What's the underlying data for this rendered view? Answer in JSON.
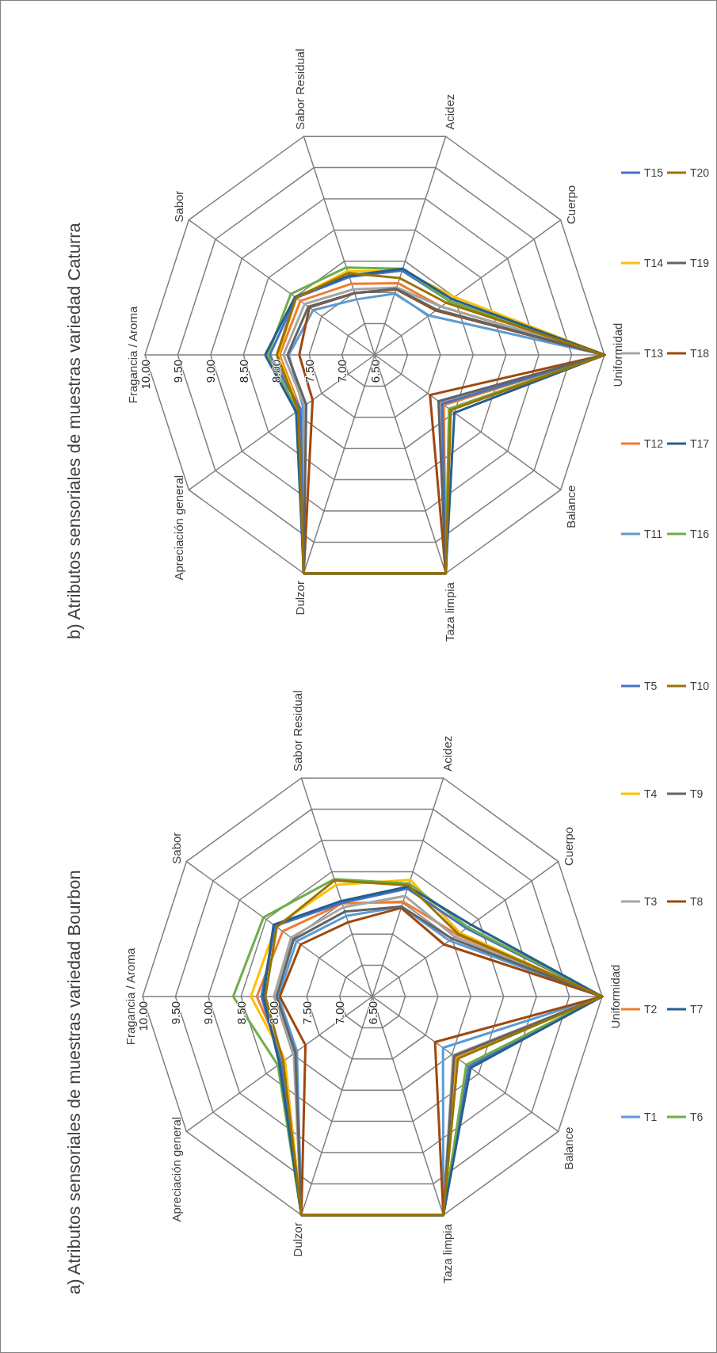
{
  "chart_data": [
    {
      "type": "radar",
      "title": "a) Atributos sensoriales de muestras variedad Bourbon",
      "categories": [
        "Fragancia / Aroma",
        "Sabor",
        "Sabor Residual",
        "Acidez",
        "Cuerpo",
        "Uniformidad",
        "Balance",
        "Taza limpia",
        "Dulzor",
        "Apreciación general"
      ],
      "ylim": [
        6.5,
        10
      ],
      "yticks": [
        {
          "value": 6.5,
          "label": "6.50"
        },
        {
          "value": 7,
          "label": "7.00"
        },
        {
          "value": 7.5,
          "label": "7.50"
        },
        {
          "value": 8,
          "label": "8.00"
        },
        {
          "value": 8.5,
          "label": "8.50"
        },
        {
          "value": 9,
          "label": "9.00"
        },
        {
          "value": 9.5,
          "label": "9.50"
        },
        {
          "value": 10,
          "label": "10.00"
        }
      ],
      "grid": true,
      "legend": "right",
      "marker": "none",
      "line_style": "solid",
      "series": [
        {
          "name": "T1",
          "color": "#5b9bd5",
          "values": [
            7.93,
            7.93,
            7.79,
            7.94,
            7.95,
            10,
            7.83,
            10,
            10,
            7.92
          ]
        },
        {
          "name": "T2",
          "color": "#ed7d31",
          "values": [
            8.26,
            8.19,
            7.99,
            8.02,
            8.1,
            10,
            8.08,
            10,
            10,
            8.15
          ]
        },
        {
          "name": "T3",
          "color": "#a5a5a5",
          "values": [
            8.0,
            8.03,
            7.93,
            8.11,
            8.05,
            10,
            8.02,
            10,
            10,
            7.98
          ]
        },
        {
          "name": "T4",
          "color": "#ffc000",
          "values": [
            8.35,
            8.32,
            8.29,
            8.37,
            8.15,
            10,
            8.1,
            10,
            10,
            8.15
          ]
        },
        {
          "name": "T5",
          "color": "#4472c4",
          "values": [
            8.19,
            8.33,
            8.0,
            8.23,
            8.27,
            10,
            8.31,
            10,
            10,
            8.22
          ]
        },
        {
          "name": "T6",
          "color": "#70ad47",
          "values": [
            8.62,
            8.55,
            8.38,
            8.31,
            8.3,
            10,
            8.27,
            10,
            10,
            8.28
          ]
        },
        {
          "name": "T7",
          "color": "#255e91",
          "values": [
            8.16,
            8.36,
            8.03,
            8.26,
            8.36,
            10,
            8.35,
            10,
            10,
            8.25
          ]
        },
        {
          "name": "T8",
          "color": "#9e480e",
          "values": [
            7.91,
            7.85,
            7.69,
            7.92,
            7.85,
            10,
            7.68,
            10,
            10,
            7.76
          ]
        },
        {
          "name": "T9",
          "color": "#636363",
          "values": [
            7.96,
            7.98,
            7.86,
            7.94,
            8.0,
            10,
            8.04,
            10,
            10,
            7.95
          ]
        },
        {
          "name": "T10",
          "color": "#997300",
          "values": [
            8.13,
            8.3,
            8.36,
            8.28,
            8.12,
            10,
            8.11,
            10,
            10,
            8.18
          ]
        }
      ]
    },
    {
      "type": "radar",
      "title": "b) Atributos sensoriales de muestras variedad Caturra",
      "categories": [
        "Fragancia / Aroma",
        "Sabor",
        "Sabor Residual",
        "Acidez",
        "Cuerpo",
        "Uniformidad",
        "Balance",
        "Taza limpia",
        "Dulzor",
        "Apreciación general"
      ],
      "ylim": [
        6.5,
        10
      ],
      "yticks": [
        {
          "value": 6.5,
          "label": "6.50"
        },
        {
          "value": 7,
          "label": "7.00"
        },
        {
          "value": 7.5,
          "label": "7.50"
        },
        {
          "value": 8,
          "label": "8.00"
        },
        {
          "value": 8.5,
          "label": "8.50"
        },
        {
          "value": 9,
          "label": "9.00"
        },
        {
          "value": 9.5,
          "label": "9.50"
        },
        {
          "value": 10,
          "label": "10.00"
        }
      ],
      "grid": true,
      "legend": "right",
      "marker": "none",
      "line_style": "solid",
      "series": [
        {
          "name": "T11",
          "color": "#5b9bd5",
          "values": [
            7.81,
            7.66,
            7.39,
            7.48,
            7.52,
            10,
            7.75,
            10,
            10,
            7.85
          ]
        },
        {
          "name": "T12",
          "color": "#ed7d31",
          "values": [
            7.95,
            7.9,
            7.64,
            7.65,
            7.75,
            10,
            7.8,
            10,
            10,
            7.9
          ]
        },
        {
          "name": "T13",
          "color": "#a5a5a5",
          "values": [
            7.89,
            7.82,
            7.55,
            7.58,
            7.75,
            10,
            7.72,
            10,
            10,
            7.82
          ]
        },
        {
          "name": "T14",
          "color": "#ffc000",
          "values": [
            7.97,
            7.98,
            7.84,
            7.85,
            8.0,
            10,
            7.9,
            10,
            10,
            7.92
          ]
        },
        {
          "name": "T15",
          "color": "#4472c4",
          "values": [
            8.1,
            7.98,
            7.75,
            7.85,
            7.9,
            10,
            7.77,
            10,
            10,
            7.9
          ]
        },
        {
          "name": "T16",
          "color": "#70ad47",
          "values": [
            8.13,
            8.08,
            7.9,
            7.88,
            7.9,
            10,
            7.9,
            10,
            10,
            7.95
          ]
        },
        {
          "name": "T17",
          "color": "#255e91",
          "values": [
            8.17,
            8.0,
            7.77,
            7.88,
            7.95,
            10,
            8.0,
            10,
            10,
            7.98
          ]
        },
        {
          "name": "T18",
          "color": "#9e480e",
          "values": [
            7.65,
            7.73,
            7.49,
            7.55,
            7.65,
            10,
            7.54,
            10,
            10,
            7.67
          ]
        },
        {
          "name": "T19",
          "color": "#636363",
          "values": [
            7.83,
            7.75,
            7.49,
            7.56,
            7.67,
            10,
            7.7,
            10,
            10,
            7.79
          ]
        },
        {
          "name": "T20",
          "color": "#997300",
          "values": [
            7.99,
            7.98,
            7.81,
            7.73,
            7.85,
            10,
            7.93,
            10,
            10,
            7.94
          ]
        }
      ]
    }
  ]
}
